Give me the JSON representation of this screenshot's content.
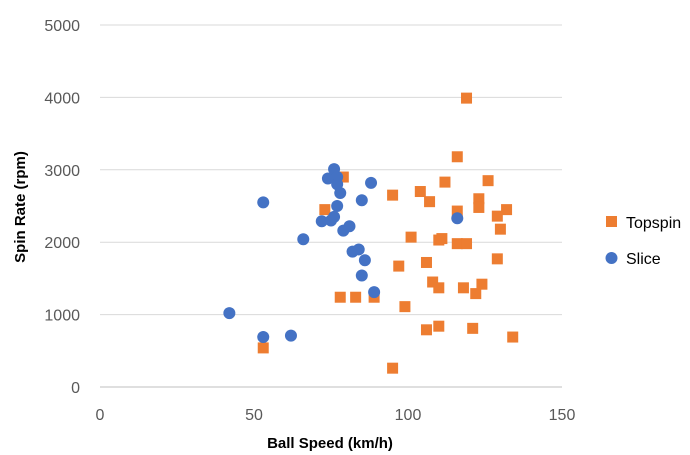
{
  "chart_data": {
    "type": "scatter",
    "title": "",
    "xlabel": "Ball Speed (km/h)",
    "ylabel": "Spin Rate (rpm)",
    "xlim": [
      0,
      150
    ],
    "ylim": [
      0,
      5000
    ],
    "x_ticks": [
      "0",
      "50",
      "100",
      "150"
    ],
    "y_ticks": [
      "0",
      "1000",
      "2000",
      "3000",
      "4000",
      "5000"
    ],
    "grid": "horizontal",
    "legend_position": "right",
    "series": [
      {
        "name": "Topspin",
        "color": "#ED7D31",
        "marker": "square",
        "points": [
          [
            53,
            540
          ],
          [
            73,
            2450
          ],
          [
            78,
            1240
          ],
          [
            79,
            2900
          ],
          [
            83,
            1240
          ],
          [
            89,
            1240
          ],
          [
            95,
            2650
          ],
          [
            95,
            260
          ],
          [
            97,
            1670
          ],
          [
            99,
            1110
          ],
          [
            101,
            2070
          ],
          [
            104,
            2700
          ],
          [
            106,
            1720
          ],
          [
            106,
            790
          ],
          [
            107,
            2560
          ],
          [
            108,
            1450
          ],
          [
            110,
            2030
          ],
          [
            110,
            1370
          ],
          [
            111,
            2050
          ],
          [
            110,
            840
          ],
          [
            112,
            2830
          ],
          [
            116,
            3180
          ],
          [
            116,
            2430
          ],
          [
            116,
            1980
          ],
          [
            118,
            1370
          ],
          [
            119,
            1980
          ],
          [
            119,
            3990
          ],
          [
            121,
            810
          ],
          [
            122,
            1290
          ],
          [
            123,
            2600
          ],
          [
            123,
            2480
          ],
          [
            124,
            1420
          ],
          [
            126,
            2850
          ],
          [
            129,
            2360
          ],
          [
            130,
            2180
          ],
          [
            129,
            1770
          ],
          [
            132,
            2450
          ],
          [
            134,
            690
          ]
        ]
      },
      {
        "name": "Slice",
        "color": "#4472C4",
        "marker": "circle",
        "points": [
          [
            42,
            1020
          ],
          [
            53,
            2550
          ],
          [
            53,
            690
          ],
          [
            62,
            710
          ],
          [
            66,
            2040
          ],
          [
            72,
            2290
          ],
          [
            74,
            2880
          ],
          [
            75,
            2300
          ],
          [
            76,
            3010
          ],
          [
            76,
            2350
          ],
          [
            77,
            2500
          ],
          [
            77,
            2900
          ],
          [
            77,
            2800
          ],
          [
            78,
            2680
          ],
          [
            79,
            2160
          ],
          [
            81,
            2220
          ],
          [
            82,
            1870
          ],
          [
            84,
            1900
          ],
          [
            85,
            1540
          ],
          [
            85,
            2580
          ],
          [
            86,
            1750
          ],
          [
            88,
            2820
          ],
          [
            89,
            1310
          ],
          [
            116,
            2330
          ]
        ]
      }
    ]
  }
}
